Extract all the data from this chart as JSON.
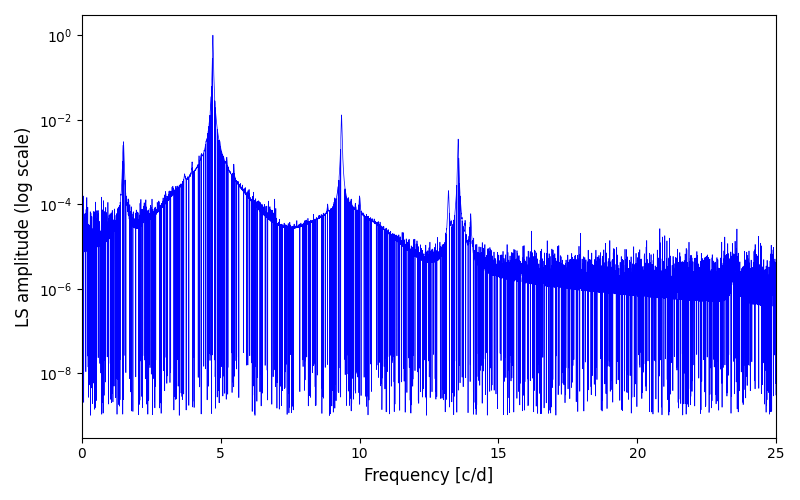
{
  "xlabel": "Frequency [c/d]",
  "ylabel": "LS amplitude (log scale)",
  "xlim": [
    0,
    25
  ],
  "ylim_low": 3e-10,
  "ylim_high": 3.0,
  "line_color": "#0000ff",
  "line_width": 0.5,
  "background_color": "#ffffff",
  "figsize": [
    8.0,
    5.0
  ],
  "dpi": 100,
  "seed": 12345,
  "n_points": 8000
}
